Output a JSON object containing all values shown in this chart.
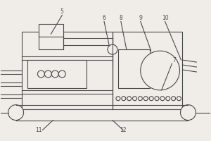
{
  "bg_color": "#f0ede8",
  "line_color": "#4a4a4a",
  "lw": 0.8,
  "note_fontsize": 5.5
}
